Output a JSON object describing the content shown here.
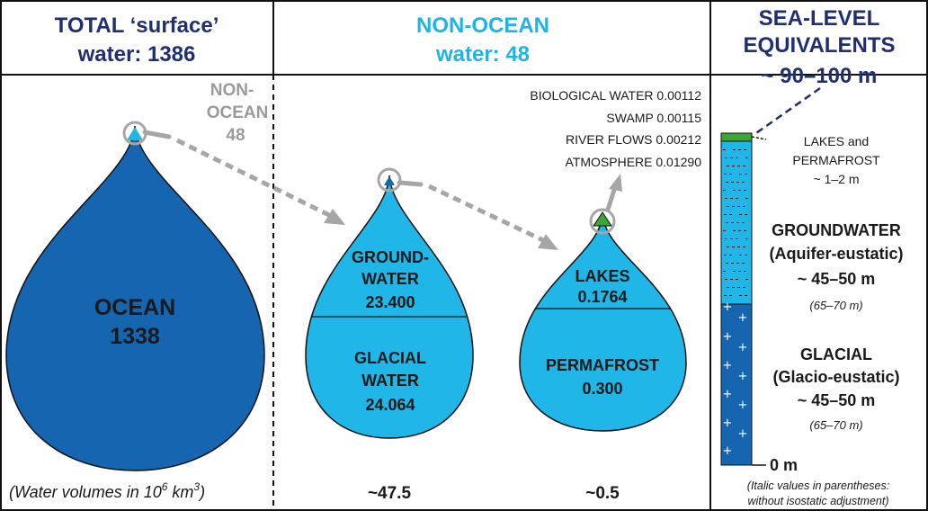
{
  "colors": {
    "ocean": "#1565b0",
    "non_ocean": "#20b6e8",
    "navy_title": "#1f2f72",
    "cyan_title": "#1eb4e6",
    "green_cap": "#3aa635",
    "arrow_gray": "#a6a6a6"
  },
  "panel_total": {
    "title_line1": "TOTAL ‘surface’",
    "title_line2": "water: 1386",
    "annotation_line1": "NON-",
    "annotation_line2": "OCEAN",
    "annotation_line3": "48",
    "ocean_label": "OCEAN",
    "ocean_value": "1338",
    "footnote_prefix": "(Water volumes in 10",
    "footnote_exp1": "6",
    "footnote_mid": " km",
    "footnote_exp2": "3",
    "footnote_suffix": ")"
  },
  "panel_non_ocean": {
    "title_line1": "NON-OCEAN",
    "title_line2": "water: 48",
    "groundwater_line1": "GROUND-",
    "groundwater_line2": "WATER",
    "groundwater_value": "23.400",
    "glacial_line1": "GLACIAL",
    "glacial_line2": "WATER",
    "glacial_value": "24.064",
    "lakes_label": "LAKES",
    "lakes_value": "0.1764",
    "permafrost_label": "PERMAFROST",
    "permafrost_value": "0.300",
    "minor_items": [
      "BIOLOGICAL WATER 0.00112",
      "SWAMP 0.00115",
      "RIVER FLOWS 0.00212",
      "ATMOSPHERE 0.01290"
    ],
    "total_left": "~47.5",
    "total_right": "~0.5"
  },
  "panel_sea_level": {
    "title_line1": "SEA-LEVEL",
    "title_line2": "EQUIVALENTS",
    "title_line3": "~ 90–100 m",
    "lakes_line1": "LAKES and",
    "lakes_line2": "PERMAFROST",
    "lakes_line3": "~ 1–2 m",
    "groundwater_line1": "GROUNDWATER",
    "groundwater_line2": "(Aquifer-eustatic)",
    "groundwater_line3": "~ 45–50 m",
    "groundwater_note": "(65–70 m)",
    "glacial_line1": "GLACIAL",
    "glacial_line2": "(Glacio-eustatic)",
    "glacial_line3": "~ 45–50 m",
    "glacial_note": "(65–70 m)",
    "zero_label": "0 m",
    "footnote_line1": "(Italic values in parentheses:",
    "footnote_line2": "without isostatic adjustment)"
  }
}
